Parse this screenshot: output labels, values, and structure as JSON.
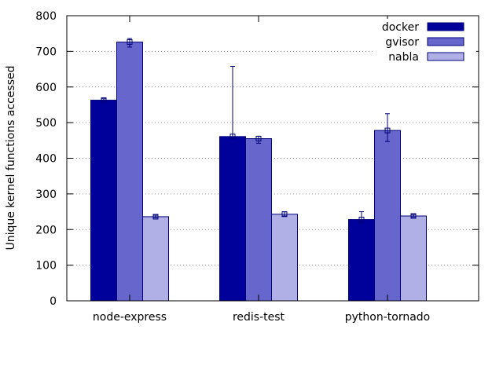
{
  "chart_data": {
    "type": "bar",
    "title": "",
    "xlabel": "",
    "ylabel": "Unique kernel functions accessed",
    "ylim": [
      0,
      800
    ],
    "yticks": [
      0,
      100,
      200,
      300,
      400,
      500,
      600,
      700,
      800
    ],
    "grid": "horizontal dotted",
    "legend_position": "top-right",
    "categories": [
      "node-express",
      "redis-test",
      "python-tornado"
    ],
    "series": [
      {
        "name": "docker",
        "color": "#00009b",
        "values": [
          563,
          461,
          228
        ],
        "error_low": [
          560,
          455,
          218
        ],
        "error_high": [
          567,
          658,
          250
        ]
      },
      {
        "name": "gvisor",
        "color": "#6666cc",
        "values": [
          726,
          455,
          478
        ],
        "error_low": [
          712,
          442,
          447
        ],
        "error_high": [
          736,
          462,
          525
        ]
      },
      {
        "name": "nabla",
        "color": "#b0b0e6",
        "values": [
          236,
          243,
          238
        ],
        "error_low": [
          233,
          238,
          235
        ],
        "error_high": [
          240,
          250,
          242
        ]
      }
    ]
  }
}
